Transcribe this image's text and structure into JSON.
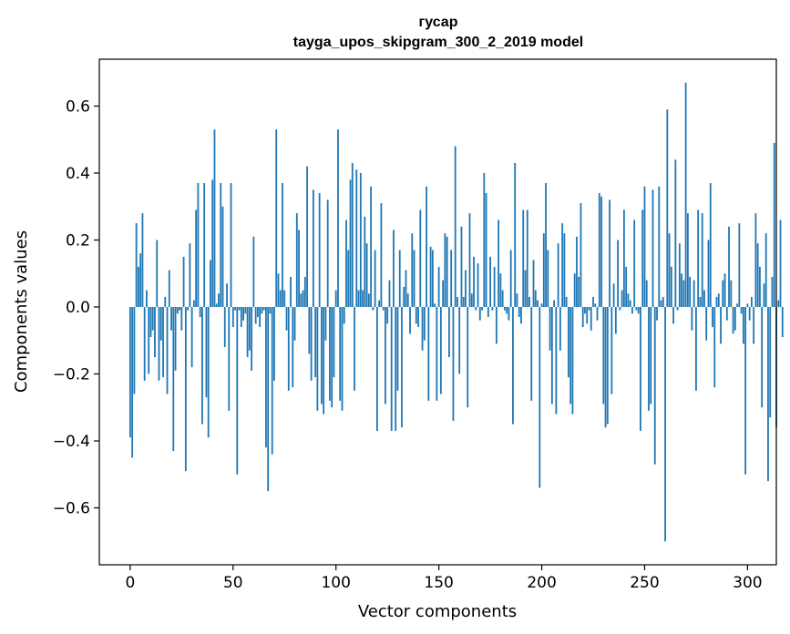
{
  "chart_data": {
    "type": "bar",
    "title_line1": "гусар",
    "title_line2": "tayga_upos_skipgram_300_2_2019 model",
    "xlabel": "Vector components",
    "ylabel": "Components values",
    "xlim": [
      -15,
      314
    ],
    "ylim": [
      -0.77,
      0.74
    ],
    "xticks": [
      0,
      50,
      100,
      150,
      200,
      250,
      300
    ],
    "xtick_labels": [
      "0",
      "50",
      "100",
      "150",
      "200",
      "250",
      "300"
    ],
    "yticks": [
      -0.6,
      -0.4,
      -0.2,
      0.0,
      0.2,
      0.4,
      0.6
    ],
    "ytick_labels": [
      "−0.6",
      "−0.4",
      "−0.2",
      "0.0",
      "0.2",
      "0.4",
      "0.6"
    ],
    "bar_color": "#1f77b4",
    "grid": false,
    "values": [
      -0.39,
      -0.45,
      -0.26,
      0.25,
      0.12,
      0.16,
      0.28,
      -0.22,
      0.05,
      -0.2,
      -0.09,
      -0.07,
      -0.15,
      0.2,
      -0.22,
      -0.1,
      -0.21,
      0.03,
      -0.26,
      0.11,
      -0.07,
      -0.43,
      -0.19,
      -0.02,
      -0.01,
      -0.07,
      0.15,
      -0.49,
      -0.01,
      0.19,
      -0.18,
      0.02,
      0.29,
      0.37,
      -0.03,
      -0.35,
      0.37,
      -0.27,
      -0.39,
      0.14,
      0.38,
      0.53,
      0.01,
      0.04,
      0.37,
      0.3,
      -0.12,
      0.07,
      -0.31,
      0.37,
      -0.06,
      -0.01,
      -0.5,
      -0.01,
      -0.06,
      -0.04,
      -0.02,
      -0.15,
      -0.13,
      -0.19,
      0.21,
      -0.05,
      -0.03,
      -0.06,
      -0.02,
      -0.01,
      -0.42,
      -0.55,
      -0.02,
      -0.44,
      -0.22,
      0.53,
      0.1,
      0.05,
      0.37,
      0.05,
      -0.07,
      -0.25,
      0.09,
      -0.24,
      -0.1,
      0.28,
      0.23,
      0.04,
      0.05,
      0.09,
      0.42,
      -0.14,
      -0.22,
      0.35,
      -0.21,
      -0.31,
      0.34,
      -0.29,
      -0.32,
      -0.1,
      0.32,
      -0.28,
      -0.3,
      -0.21,
      0.05,
      0.53,
      -0.28,
      -0.31,
      -0.05,
      0.26,
      0.17,
      0.38,
      0.43,
      -0.25,
      0.41,
      0.05,
      0.4,
      0.05,
      0.27,
      0.19,
      0.04,
      0.36,
      -0.01,
      0.17,
      -0.37,
      0.02,
      0.31,
      -0.01,
      -0.29,
      -0.05,
      0.08,
      -0.37,
      0.23,
      -0.37,
      -0.25,
      0.17,
      -0.36,
      0.06,
      0.11,
      0.04,
      -0.08,
      0.22,
      0.17,
      -0.05,
      -0.06,
      0.29,
      -0.13,
      -0.1,
      0.36,
      -0.28,
      0.18,
      0.17,
      0.01,
      -0.28,
      0.12,
      -0.26,
      0.08,
      0.22,
      0.21,
      -0.15,
      0.17,
      -0.34,
      0.48,
      0.03,
      -0.2,
      0.24,
      0.03,
      0.11,
      -0.3,
      0.28,
      0.04,
      0.15,
      -0.01,
      0.13,
      -0.04,
      -0.01,
      0.4,
      0.34,
      -0.03,
      0.15,
      -0.01,
      0.12,
      -0.11,
      0.26,
      0.1,
      0.05,
      -0.01,
      -0.02,
      -0.04,
      0.17,
      -0.35,
      0.43,
      0.04,
      -0.03,
      -0.05,
      0.29,
      0.11,
      0.29,
      0.03,
      -0.28,
      0.14,
      0.05,
      0.02,
      -0.54,
      0.01,
      0.22,
      0.37,
      0.17,
      -0.13,
      -0.29,
      0.02,
      -0.32,
      0.19,
      -0.13,
      0.25,
      0.22,
      0.03,
      -0.21,
      -0.29,
      -0.32,
      0.1,
      0.21,
      0.09,
      0.31,
      -0.06,
      -0.02,
      -0.05,
      -0.01,
      -0.07,
      0.03,
      0.01,
      -0.04,
      0.34,
      0.33,
      -0.29,
      -0.36,
      -0.35,
      0.32,
      -0.26,
      0.07,
      -0.08,
      0.2,
      -0.01,
      0.05,
      0.29,
      0.12,
      0.04,
      0.02,
      -0.02,
      0.26,
      -0.01,
      -0.02,
      -0.37,
      0.29,
      0.36,
      0.08,
      -0.31,
      -0.29,
      0.35,
      -0.47,
      -0.04,
      0.36,
      0.02,
      0.03,
      -0.7,
      0.59,
      0.22,
      0.12,
      -0.05,
      0.44,
      -0.01,
      0.19,
      0.1,
      0.08,
      0.67,
      0.28,
      0.09,
      -0.07,
      0.08,
      -0.25,
      0.29,
      0.03,
      0.28,
      0.05,
      -0.1,
      0.2,
      0.37,
      -0.06,
      -0.24,
      0.03,
      0.04,
      -0.11,
      0.08,
      0.1,
      -0.04,
      0.24,
      0.08,
      -0.08,
      -0.07,
      0.01,
      0.25,
      -0.02,
      -0.11,
      -0.5,
      0.01,
      -0.04,
      0.03,
      -0.11,
      0.28,
      0.19,
      0.12,
      -0.3,
      0.07,
      0.22,
      -0.52,
      -0.33,
      0.09,
      0.49,
      -0.36,
      0.02,
      0.26,
      -0.09
    ]
  }
}
